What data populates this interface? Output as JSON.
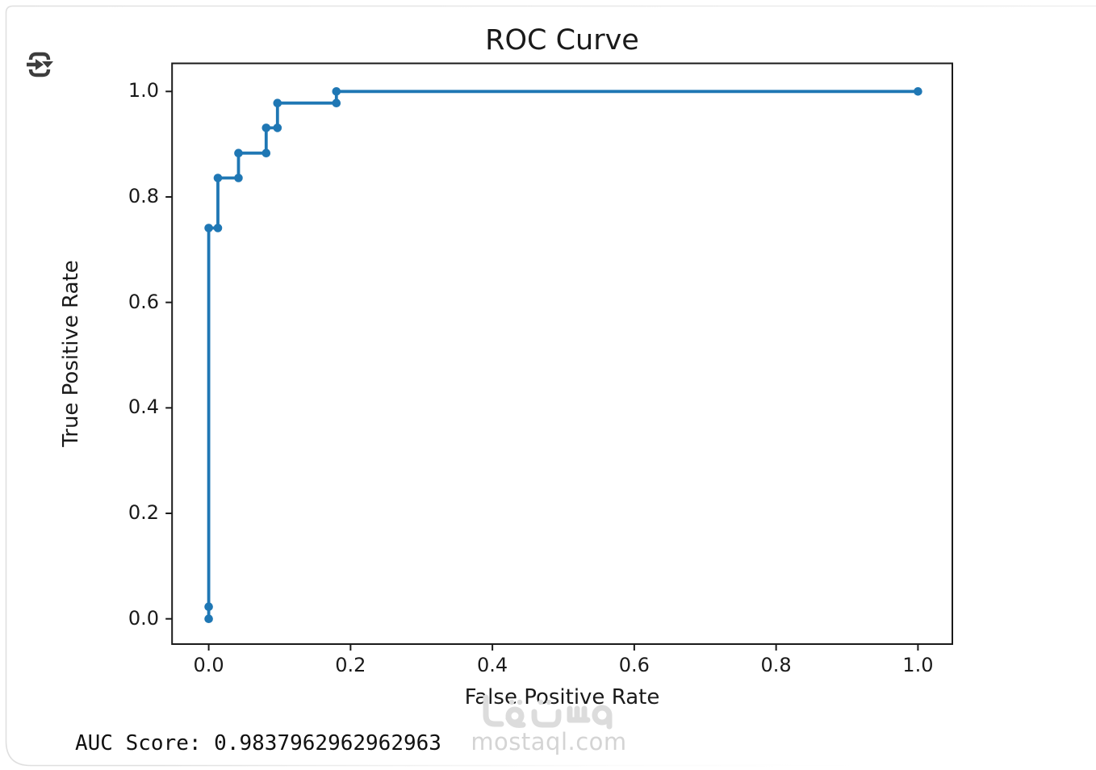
{
  "icons": {
    "toolbar": "insert-arrow-dropdown-icon",
    "toolbar_color": "#3d3d3d"
  },
  "chart_data": {
    "type": "line",
    "title": "ROC Curve",
    "xlabel": "False Positive Rate",
    "ylabel": "True Positive Rate",
    "x_ticks": [
      "0.0",
      "0.2",
      "0.4",
      "0.6",
      "0.8",
      "1.0"
    ],
    "y_ticks": [
      "0.0",
      "0.2",
      "0.4",
      "0.6",
      "0.8",
      "1.0"
    ],
    "xlim": [
      -0.05,
      1.05
    ],
    "ylim": [
      -0.05,
      1.05
    ],
    "grid": false,
    "legend": false,
    "series": [
      {
        "name": "ROC curve",
        "color": "#1f77b4",
        "marker": "o",
        "x": [
          0.0,
          0.0,
          0.0,
          0.013,
          0.013,
          0.042,
          0.042,
          0.081,
          0.081,
          0.097,
          0.097,
          0.18,
          0.18,
          1.0
        ],
        "y": [
          0.0,
          0.023,
          0.741,
          0.741,
          0.836,
          0.836,
          0.883,
          0.883,
          0.931,
          0.931,
          0.978,
          0.978,
          1.0,
          1.0
        ]
      }
    ]
  },
  "footer": {
    "auc_text": "AUC Score: 0.9837962962962963"
  },
  "watermark": {
    "logo_text": "مستقل",
    "domain": "mostaql.com",
    "color": "#dcdcdc"
  },
  "frame": {
    "border_color": "#dfdfdf",
    "background": "#ffffff"
  }
}
